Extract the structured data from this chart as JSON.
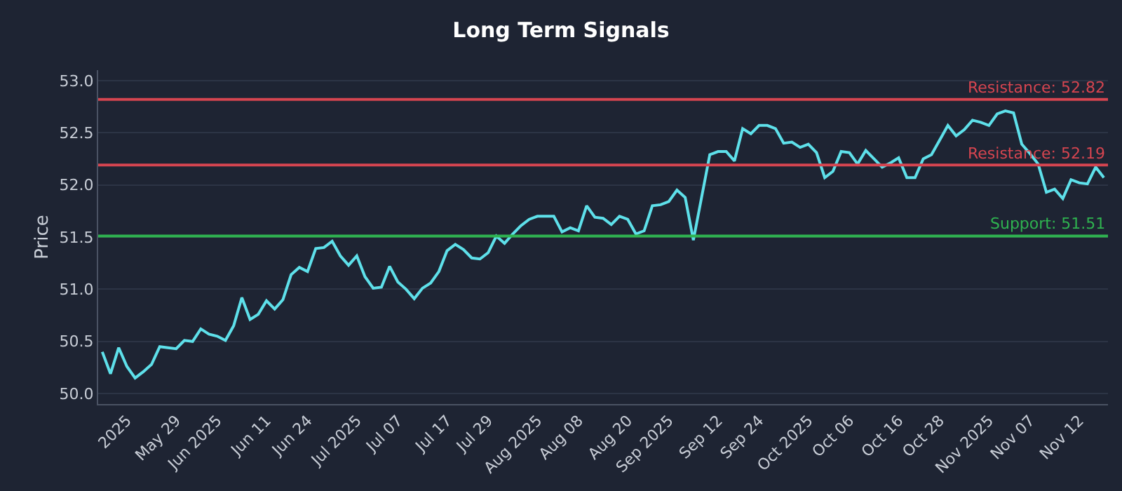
{
  "chart_data": {
    "type": "line",
    "title": "Long Term Signals",
    "ylabel": "Price",
    "categories": [
      null,
      null,
      null,
      "2025",
      null,
      null,
      null,
      null,
      null,
      "May 29",
      null,
      null,
      null,
      null,
      "Jun 2025",
      null,
      null,
      null,
      null,
      null,
      "Jun 11",
      null,
      null,
      null,
      null,
      "Jun 24",
      null,
      null,
      null,
      null,
      null,
      "Jul 2025",
      null,
      null,
      null,
      null,
      "Jul 07",
      null,
      null,
      null,
      null,
      null,
      "Jul 17",
      null,
      null,
      null,
      null,
      "Jul 29",
      null,
      null,
      null,
      null,
      null,
      "Aug 2025",
      null,
      null,
      null,
      null,
      "Aug 08",
      null,
      null,
      null,
      null,
      null,
      "Aug 20",
      null,
      null,
      null,
      null,
      "Sep 2025",
      null,
      null,
      null,
      null,
      null,
      "Sep 12",
      null,
      null,
      null,
      null,
      "Sep 24",
      null,
      null,
      null,
      null,
      null,
      "Oct 2025",
      null,
      null,
      null,
      null,
      "Oct 06",
      null,
      null,
      null,
      null,
      null,
      "Oct 16",
      null,
      null,
      null,
      null,
      "Oct 28",
      null,
      null,
      null,
      null,
      null,
      "Nov 2025",
      null,
      null,
      null,
      null,
      "Nov 07",
      null,
      null,
      null,
      null,
      null,
      "Nov 12",
      null,
      null,
      null
    ],
    "series": [
      {
        "color": "#5ee0ea",
        "values": [
          50.4,
          50.19,
          50.44,
          50.26,
          50.15,
          50.21,
          50.28,
          50.45,
          50.44,
          50.43,
          50.51,
          50.5,
          50.62,
          50.57,
          50.55,
          50.51,
          50.65,
          50.92,
          50.71,
          50.76,
          50.89,
          50.81,
          50.9,
          51.14,
          51.21,
          51.17,
          51.39,
          51.4,
          51.46,
          51.32,
          51.23,
          51.32,
          51.12,
          51.01,
          51.02,
          51.22,
          51.07,
          51.0,
          50.91,
          51.01,
          51.06,
          51.17,
          51.37,
          51.43,
          51.38,
          51.3,
          51.29,
          51.35,
          51.51,
          51.44,
          51.53,
          51.61,
          51.67,
          51.7,
          51.7,
          51.7,
          51.55,
          51.59,
          51.56,
          51.8,
          51.69,
          51.68,
          51.62,
          51.7,
          51.67,
          51.53,
          51.56,
          51.8,
          51.81,
          51.84,
          51.95,
          51.88,
          51.47,
          51.88,
          52.29,
          52.32,
          52.32,
          52.23,
          52.54,
          52.49,
          52.57,
          52.57,
          52.54,
          52.4,
          52.41,
          52.36,
          52.39,
          52.31,
          52.07,
          52.13,
          52.32,
          52.31,
          52.2,
          52.33,
          52.25,
          52.17,
          52.21,
          52.26,
          52.07,
          52.07,
          52.25,
          52.29,
          52.43,
          52.57,
          52.47,
          52.53,
          52.62,
          52.6,
          52.57,
          52.68,
          52.71,
          52.69,
          52.39,
          52.3,
          52.2,
          51.93,
          51.96,
          51.87,
          52.05,
          52.02,
          52.01,
          52.17,
          52.07
        ]
      }
    ],
    "ylim": [
      49.9,
      53.1
    ],
    "yticks": [
      {
        "value": 50,
        "label": "50.0"
      },
      50.5,
      {
        "value": 51,
        "label": "51.0"
      },
      51.5,
      {
        "value": 52,
        "label": "52.0"
      },
      52.5,
      {
        "value": 53,
        "label": "53.0"
      }
    ],
    "ref_lines": [
      {
        "axis": "y",
        "value": 52.82,
        "label": "Resistance: 52.82",
        "color": "#d64550"
      },
      {
        "axis": "y",
        "value": 52.19,
        "label": "Resistance: 52.19",
        "color": "#d64550"
      },
      {
        "axis": "y",
        "value": 51.51,
        "label": "Support: 51.51",
        "color": "#2fb350"
      }
    ],
    "grid": "y",
    "marker": "none",
    "line_style": "solid"
  }
}
